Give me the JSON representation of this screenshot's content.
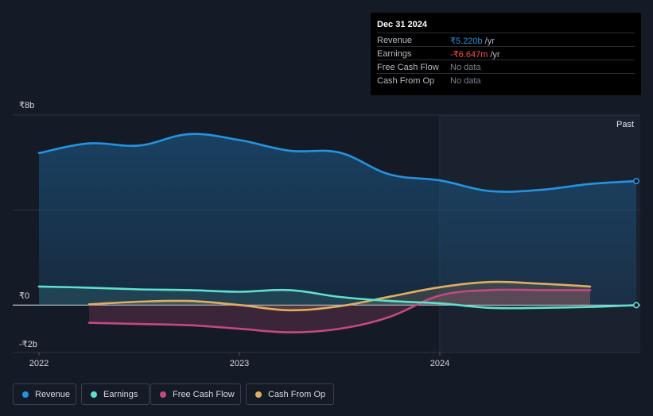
{
  "tooltip": {
    "date": "Dec 31 2024",
    "rows": [
      {
        "label": "Revenue",
        "value": "₹5.220b",
        "unit": "/yr"
      },
      {
        "label": "Earnings",
        "value": "-₹6.647m",
        "unit": "/yr"
      },
      {
        "label": "Free Cash Flow",
        "value": "No data"
      },
      {
        "label": "Cash From Op",
        "value": "No data"
      }
    ]
  },
  "colors": {
    "background": "#151b26",
    "revenue": "#2394df",
    "earnings": "#5ee0cf",
    "free_cash_flow": "#c4497e",
    "cash_from_op": "#e0ae62",
    "negative": "#ff4d4d"
  },
  "legend": [
    {
      "label": "Revenue",
      "color": "#2394df"
    },
    {
      "label": "Earnings",
      "color": "#5ee0cf"
    },
    {
      "label": "Free Cash Flow",
      "color": "#c4497e"
    },
    {
      "label": "Cash From Op",
      "color": "#e0ae62"
    }
  ],
  "chart_data": {
    "type": "area",
    "title": "",
    "xlabel": "",
    "ylabel": "",
    "ylim": [
      -2,
      8
    ],
    "xlim": [
      2021.9,
      2024.98
    ],
    "y_tick_labels": [
      {
        "value": 8,
        "label": "₹8b"
      },
      {
        "value": 0,
        "label": "₹0"
      },
      {
        "value": -2,
        "label": "-₹2b"
      }
    ],
    "x_ticks": [
      {
        "value": 2022.0,
        "label": "2022"
      },
      {
        "value": 2023.0,
        "label": "2023"
      },
      {
        "value": 2024.0,
        "label": "2024"
      }
    ],
    "past_marker": {
      "x": 2024.0,
      "label": "Past"
    },
    "series": [
      {
        "name": "Revenue",
        "unit": "₹b",
        "x": [
          2022.0,
          2022.25,
          2022.5,
          2022.75,
          2023.0,
          2023.25,
          2023.5,
          2023.75,
          2024.0,
          2024.25,
          2024.5,
          2024.75,
          2024.98
        ],
        "values": [
          6.4,
          6.81,
          6.72,
          7.2,
          6.95,
          6.5,
          6.42,
          5.5,
          5.25,
          4.8,
          4.85,
          5.1,
          5.22
        ]
      },
      {
        "name": "Earnings",
        "unit": "₹b",
        "x": [
          2022.0,
          2022.25,
          2022.5,
          2022.75,
          2023.0,
          2023.25,
          2023.5,
          2023.75,
          2024.0,
          2024.25,
          2024.5,
          2024.75,
          2024.98
        ],
        "values": [
          0.78,
          0.73,
          0.66,
          0.63,
          0.56,
          0.63,
          0.34,
          0.17,
          0.07,
          -0.12,
          -0.12,
          -0.08,
          -0.0066
        ]
      },
      {
        "name": "Free Cash Flow",
        "unit": "₹b",
        "x": [
          2022.25,
          2022.5,
          2022.75,
          2023.0,
          2023.25,
          2023.5,
          2023.75,
          2024.0,
          2024.25,
          2024.5,
          2024.75
        ],
        "values": [
          -0.75,
          -0.8,
          -0.85,
          -1.0,
          -1.15,
          -1.0,
          -0.5,
          0.4,
          0.63,
          0.63,
          0.63
        ]
      },
      {
        "name": "Cash From Op",
        "unit": "₹b",
        "x": [
          2022.25,
          2022.5,
          2022.75,
          2023.0,
          2023.25,
          2023.5,
          2023.75,
          2024.0,
          2024.25,
          2024.5,
          2024.75
        ],
        "values": [
          0.03,
          0.14,
          0.17,
          0.0,
          -0.22,
          -0.05,
          0.35,
          0.75,
          0.97,
          0.9,
          0.78
        ]
      }
    ]
  }
}
